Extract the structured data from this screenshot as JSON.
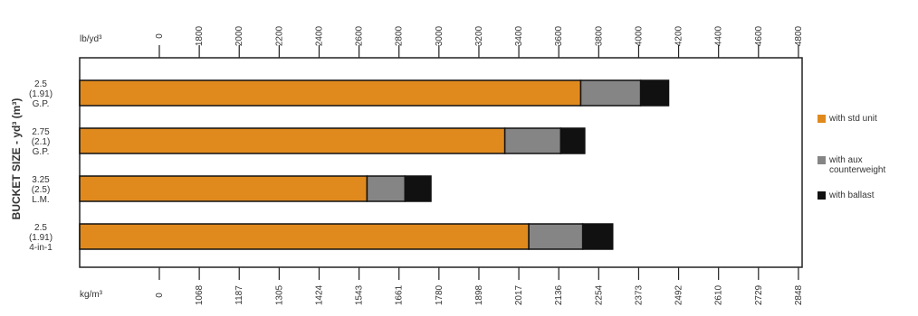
{
  "chart_data": {
    "type": "bar",
    "orientation": "horizontal",
    "stacked": true,
    "ylabel": "BUCKET SIZE - yd³ (m³)",
    "top_axis": {
      "unit": "lb/yd³",
      "ticks": [
        "0",
        "1800",
        "2000",
        "2200",
        "2400",
        "2600",
        "2800",
        "3000",
        "3200",
        "3400",
        "3600",
        "3800",
        "4000",
        "4200",
        "4400",
        "4600",
        "4800"
      ]
    },
    "bottom_axis": {
      "unit": "kg/m³",
      "ticks": [
        "0",
        "1068",
        "1187",
        "1305",
        "1424",
        "1543",
        "1661",
        "1780",
        "1898",
        "2017",
        "2136",
        "2254",
        "2373",
        "2492",
        "2610",
        "2729",
        "2848"
      ]
    },
    "categories": [
      [
        "2.5",
        "(1.91)",
        "G.P."
      ],
      [
        "2.75",
        "(2.1)",
        "G.P."
      ],
      [
        "3.25",
        "(2.5)",
        "L.M."
      ],
      [
        "2.5",
        "(1.91)",
        "4-in-1"
      ]
    ],
    "series": [
      {
        "name": "with std unit",
        "color": "#e08a1e",
        "values": [
          3710,
          3330,
          2640,
          3450
        ]
      },
      {
        "name": "with aux\ncounterweight",
        "color": "#858585",
        "values": [
          4010,
          3610,
          2830,
          3720
        ]
      },
      {
        "name": "with ballast",
        "color": "#111111",
        "values": [
          4150,
          3730,
          2960,
          3870
        ]
      }
    ],
    "grid": false,
    "legend_position": "right"
  }
}
